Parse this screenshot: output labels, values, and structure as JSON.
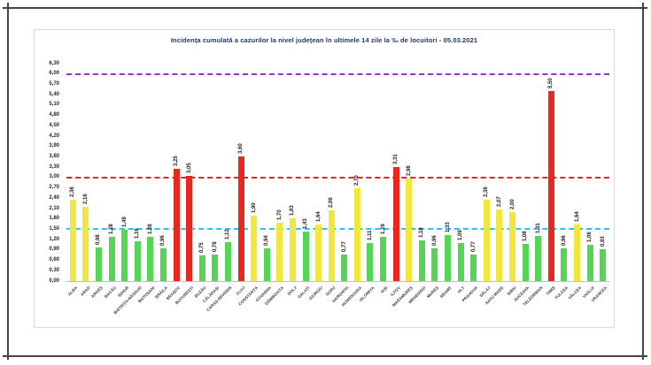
{
  "chart_data": {
    "type": "bar",
    "title": "Incidența cumulată a cazurilor la nivel județean în ultimele 14 zile la ‰ de locuitori - 05.03.2021",
    "title_color": "#1F3864",
    "categories": [
      "ALBA",
      "ARAD",
      "ARGEȘ",
      "BACĂU",
      "BIHOR",
      "BISTRIȚA-NĂSĂUD",
      "BOTOȘANI",
      "BRĂILA",
      "BRAȘOV",
      "BUCUREȘTI",
      "BUZĂU",
      "CĂLĂRAȘI",
      "CARAȘ-SEVERIN",
      "CLUJ",
      "CONSTANȚA",
      "COVASNA",
      "DÂMBOVIȚA",
      "DOLJ",
      "GALAȚI",
      "GIURGIU",
      "GORJ",
      "HARGHITA",
      "HUNEDOARA",
      "IALOMIȚA",
      "IAȘI",
      "ILFOV",
      "MARAMUREȘ",
      "MEHEDINȚI",
      "MUREȘ",
      "NEAMȚ",
      "OLT",
      "PRAHOVA",
      "SĂLAJ",
      "SATU MARE",
      "SIBIU",
      "SUCEAVA",
      "TELEORMAN",
      "TIMIȘ",
      "TULCEA",
      "VÂLCEA",
      "VASLUI",
      "VRANCEA"
    ],
    "values": [
      2.36,
      2.16,
      0.98,
      1.28,
      1.49,
      1.16,
      1.28,
      0.96,
      3.25,
      3.05,
      0.75,
      0.78,
      1.12,
      3.6,
      1.9,
      0.94,
      1.7,
      1.83,
      1.43,
      1.64,
      2.06,
      0.77,
      2.7,
      1.11,
      1.29,
      3.31,
      2.98,
      1.18,
      0.96,
      1.33,
      1.09,
      0.77,
      2.36,
      2.07,
      2.0,
      1.08,
      1.31,
      5.5,
      0.96,
      1.64,
      1.06,
      0.93
    ],
    "value_label_format": "comma-2dp",
    "xlabel": "",
    "ylabel": "",
    "ylim": [
      0,
      6.3
    ],
    "ytick_step": 0.3,
    "ytick_labels": [
      "0,00",
      "0,30",
      "0,60",
      "0,90",
      "1,20",
      "1,50",
      "1,80",
      "2,10",
      "2,40",
      "2,70",
      "3,00",
      "3,30",
      "3,60",
      "3,90",
      "4,20",
      "4,50",
      "4,80",
      "5,10",
      "5,40",
      "5,70",
      "6,00",
      "6,30"
    ],
    "grid": false,
    "legend": "none",
    "bar_colors": {
      "green": "#55D455",
      "yellow": "#F2E73C",
      "red": "#E8281E"
    },
    "color_thresholds": {
      "yellow_min": 1.5,
      "red_min": 3.0
    },
    "reference_lines": [
      {
        "value": 6.0,
        "color": "#9333C9",
        "style": "dashed",
        "name": "purple-threshold"
      },
      {
        "value": 3.0,
        "color": "#FF1A1A",
        "style": "dashed",
        "name": "red-threshold"
      },
      {
        "value": 1.5,
        "color": "#2EC0F2",
        "style": "dashed",
        "name": "cyan-threshold"
      }
    ]
  }
}
